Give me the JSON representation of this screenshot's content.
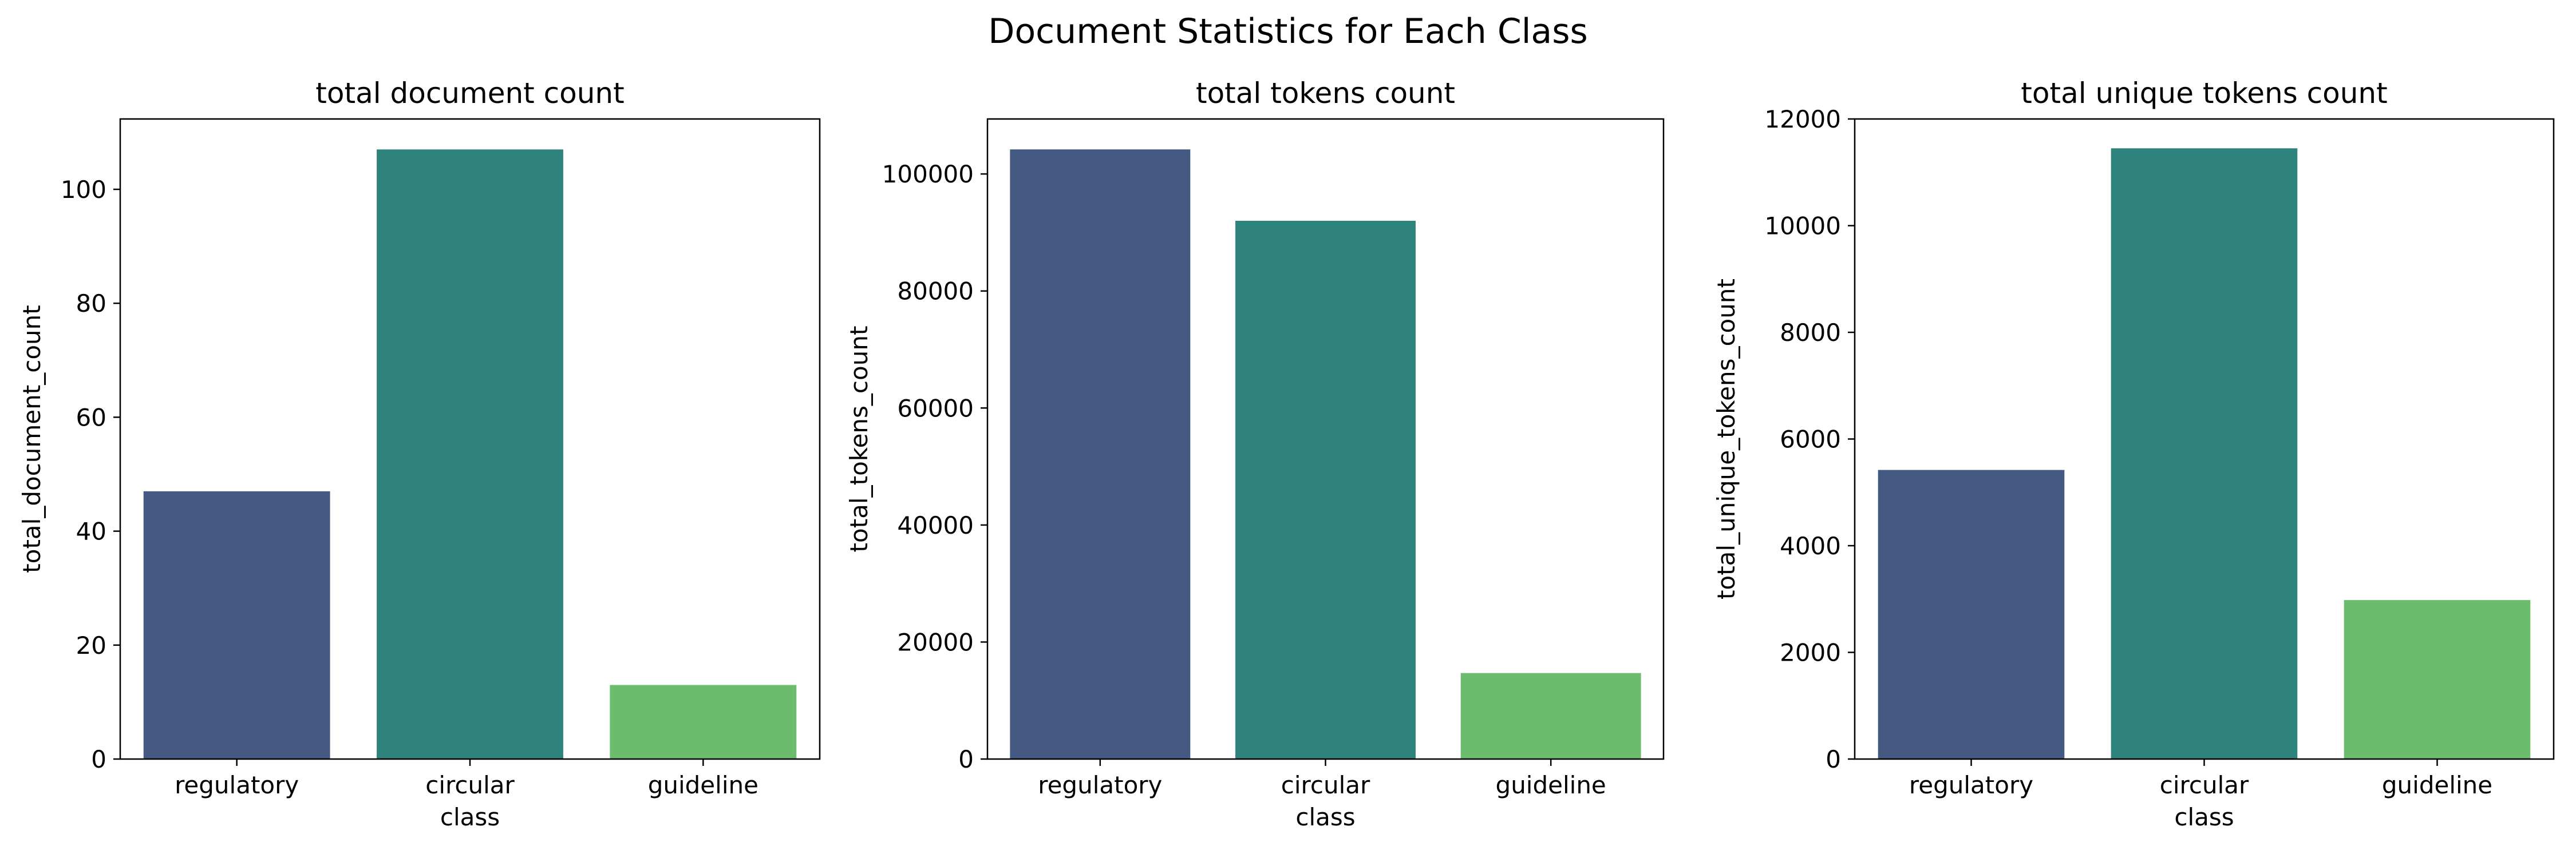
{
  "figure": {
    "title": "Document Statistics for Each Class"
  },
  "chart_data": [
    {
      "type": "bar",
      "title": "total document count",
      "xlabel": "class",
      "ylabel": "total_document_count",
      "categories": [
        "regulatory",
        "circular",
        "guideline"
      ],
      "values": [
        47,
        107,
        13
      ],
      "colors": [
        "#455a82",
        "#2e837d",
        "#6bbd6d"
      ],
      "ylim": [
        0,
        112.35
      ],
      "yticks": [
        0,
        20,
        40,
        60,
        80,
        100
      ],
      "ytick_labels": [
        "0",
        "20",
        "40",
        "60",
        "80",
        "100"
      ],
      "grid": false
    },
    {
      "type": "bar",
      "title": "total tokens count",
      "xlabel": "class",
      "ylabel": "total_tokens_count",
      "categories": [
        "regulatory",
        "circular",
        "guideline"
      ],
      "values": [
        104200,
        92000,
        14700
      ],
      "colors": [
        "#455a82",
        "#2e837d",
        "#6bbd6d"
      ],
      "ylim": [
        0,
        109400
      ],
      "yticks": [
        0,
        20000,
        40000,
        60000,
        80000,
        100000
      ],
      "ytick_labels": [
        "0",
        "20000",
        "40000",
        "60000",
        "80000",
        "100000"
      ],
      "grid": false
    },
    {
      "type": "bar",
      "title": "total unique tokens count",
      "xlabel": "class",
      "ylabel": "total_unique_tokens_count",
      "categories": [
        "regulatory",
        "circular",
        "guideline"
      ],
      "values": [
        5420,
        11450,
        2980
      ],
      "colors": [
        "#455a82",
        "#2e837d",
        "#6bbd6d"
      ],
      "ylim": [
        0,
        12000
      ],
      "yticks": [
        0,
        2000,
        4000,
        6000,
        8000,
        10000,
        12000
      ],
      "ytick_labels": [
        "0",
        "2000",
        "4000",
        "6000",
        "8000",
        "10000",
        "12000"
      ],
      "grid": false
    }
  ]
}
